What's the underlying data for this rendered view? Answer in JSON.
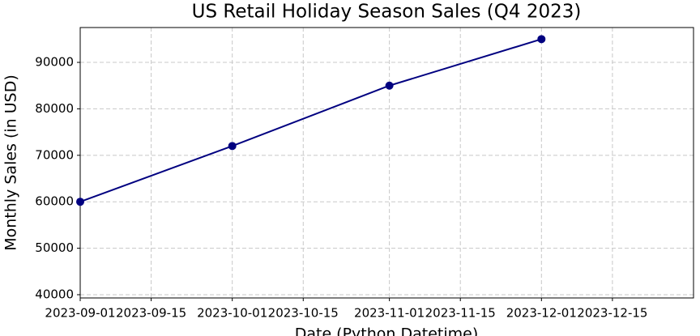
{
  "chart_data": {
    "type": "line",
    "title": "US Retail Holiday Season Sales (Q4 2023)",
    "xlabel": "Date (Python Datetime)",
    "ylabel": "Monthly Sales (in USD)",
    "x": [
      "2023-09-01",
      "2023-10-01",
      "2023-11-01",
      "2023-12-01"
    ],
    "series": [
      {
        "name": "Monthly Sales",
        "color": "#000080",
        "values": [
          60000,
          72000,
          85000,
          95000
        ]
      }
    ],
    "xlim": [
      "2023-09-01",
      "2023-12-31"
    ],
    "xticks": [
      "2023-09-01",
      "2023-09-15",
      "2023-10-01",
      "2023-10-15",
      "2023-11-01",
      "2023-11-15",
      "2023-12-01",
      "2023-12-15"
    ],
    "ylim": [
      39300,
      97500
    ],
    "yticks": [
      40000,
      50000,
      60000,
      70000,
      80000,
      90000
    ],
    "grid": true
  }
}
